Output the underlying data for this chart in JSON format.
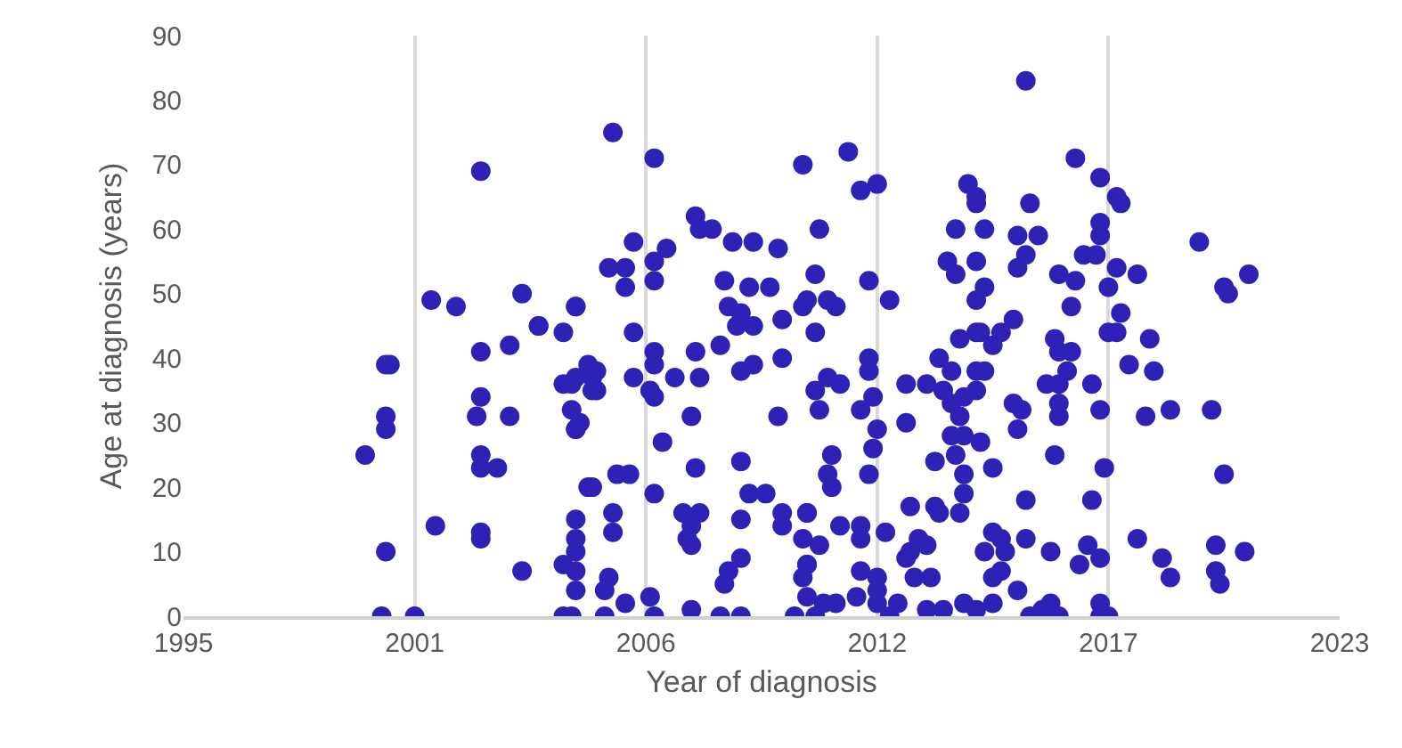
{
  "chart_data": {
    "type": "scatter",
    "xlabel": "Year of diagnosis",
    "ylabel": "Age at diagnosis (years)",
    "xlim": [
      1995,
      2023
    ],
    "xticks": [
      1995,
      {
        "value": 2000.6,
        "label": "2001"
      },
      {
        "value": 2006.2,
        "label": "2006"
      },
      {
        "value": 2011.8,
        "label": "2012"
      },
      {
        "value": 2017.4,
        "label": "2017"
      },
      2023
    ],
    "ylim": [
      0,
      90
    ],
    "yticks": [
      0,
      10,
      20,
      30,
      40,
      50,
      60,
      70,
      80,
      90
    ],
    "grid": "x",
    "marker": "circle",
    "series": [
      {
        "color": "#2e21b5",
        "x": [
          1999.4,
          1999.8,
          1999.9,
          2000.0,
          1999.9,
          1999.9,
          1999.9,
          2000.6,
          2001.0,
          2001.1,
          2001.6,
          2002.2,
          2002.2,
          2002.2,
          2002.1,
          2002.2,
          2002.2,
          2002.6,
          2002.2,
          2002.2,
          2002.9,
          2002.9,
          2003.2,
          2003.2,
          2003.6,
          2003.6,
          2004.2,
          2004.2,
          2004.5,
          2004.5,
          2004.2,
          2004.2,
          2004.5,
          2004.4,
          2004.6,
          2004.5,
          2004.5,
          2004.8,
          2005.0,
          2004.9,
          2005.4,
          2005.4,
          2006.4,
          2010.0,
          2007.4,
          2007.5,
          2007.8,
          2005.9,
          2006.7,
          2006.4,
          2005.3,
          2005.7,
          2005.7,
          2006.4,
          2008.3,
          2008.8,
          2009.4,
          2008.1,
          2008.7,
          2009.2,
          2004.5,
          2008.2,
          2008.5,
          2008.4,
          2008.8,
          2009.5,
          2010.0,
          2005.9,
          2006.4,
          2006.4,
          2007.4,
          2008.0,
          2004.8,
          2005.0,
          2004.9,
          2004.4,
          2004.5,
          2005.9,
          2006.3,
          2006.4,
          2006.9,
          2007.5,
          2008.5,
          2008.8,
          2009.5,
          2007.3,
          2009.4,
          2006.6,
          2007.4,
          2008.5,
          2004.9,
          2005.5,
          2005.8,
          2006.4,
          2008.7,
          2009.1,
          2005.4,
          2007.1,
          2007.5,
          2007.3,
          2007.2,
          2007.3,
          2008.5,
          2009.5,
          2009.5,
          2010.1,
          2004.5,
          2004.5,
          2004.5,
          2005.3,
          2005.2,
          2008.5,
          2008.2,
          2008.1,
          2010.1,
          2005.7,
          2006.3,
          2007.3,
          2005.2,
          2006.4,
          2008.0,
          2008.5,
          2009.8,
          2004.4,
          2015.4,
          2011.1,
          2011.4,
          2011.8,
          2014.0,
          2014.2,
          2014.2,
          2015.5,
          2010.4,
          2013.7,
          2014.4,
          2015.2,
          2015.7,
          2015.4,
          2013.5,
          2013.7,
          2014.2,
          2015.2,
          2010.3,
          2010.1,
          2011.6,
          2010.6,
          2010.8,
          2012.1,
          2014.4,
          2014.2,
          2010.3,
          2015.1,
          2014.8,
          2013.8,
          2014.2,
          2014.3,
          2014.6,
          2011.6,
          2011.6,
          2013.3,
          2013.6,
          2014.2,
          2014.4,
          2010.6,
          2010.9,
          2010.3,
          2012.5,
          2013.0,
          2013.4,
          2013.9,
          2014.2,
          2011.7,
          2011.4,
          2010.4,
          2013.6,
          2013.8,
          2013.9,
          2015.1,
          2015.3,
          2015.2,
          2011.8,
          2011.7,
          2012.5,
          2013.6,
          2014.3,
          2013.7,
          2010.7,
          2010.6,
          2010.7,
          2011.6,
          2013.2,
          2014.6,
          2013.9,
          2013.9,
          2013.8,
          2015.4,
          2010.1,
          2012.6,
          2013.2,
          2013.3,
          2010.9,
          2011.4,
          2011.4,
          2012.0,
          2010.4,
          2010.0,
          2012.8,
          2013.0,
          2012.6,
          2012.5,
          2014.6,
          2014.8,
          2014.4,
          2014.9,
          2015.4,
          2014.8,
          2014.6,
          2015.2,
          2010.1,
          2010.0,
          2011.4,
          2011.8,
          2011.8,
          2013.1,
          2012.7,
          2010.8,
          2010.5,
          2010.1,
          2011.3,
          2011.8,
          2012.3,
          2012.1,
          2013.0,
          2013.4,
          2013.9,
          2014.2,
          2014.6,
          2015.5,
          2015.8,
          2010.3,
          2016.6,
          2017.2,
          2017.6,
          2017.7,
          2017.2,
          2017.2,
          2017.1,
          2016.8,
          2019.6,
          2016.2,
          2016.6,
          2017.6,
          2018.1,
          2017.4,
          2020.2,
          2020.3,
          2020.8,
          2016.5,
          2017.7,
          2017.4,
          2017.6,
          2018.4,
          2016.1,
          2016.2,
          2016.5,
          2016.4,
          2015.9,
          2016.2,
          2017.9,
          2018.5,
          2017.0,
          2016.2,
          2016.2,
          2017.2,
          2018.3,
          2018.9,
          2019.9,
          2016.1,
          2017.3,
          2020.2,
          2017.0,
          2018.1,
          2016.0,
          2016.9,
          2016.7,
          2017.2,
          2018.7,
          2018.9,
          2020.0,
          2020.0,
          2020.1,
          2020.7,
          2016.0,
          2016.2,
          2017.2,
          2017.2,
          2017.4
        ],
        "values": [
          25,
          0,
          39,
          39,
          31,
          29,
          10,
          0,
          49,
          14,
          48,
          69,
          41,
          34,
          31,
          25,
          23,
          23,
          13,
          12,
          31,
          42,
          50,
          7,
          45,
          45,
          44,
          36,
          10,
          4,
          0,
          8,
          48,
          32,
          30,
          29,
          37,
          20,
          35,
          37,
          13,
          75,
          71,
          70,
          62,
          60,
          60,
          58,
          57,
          55,
          54,
          54,
          51,
          52,
          58,
          58,
          57,
          52,
          51,
          51,
          48,
          48,
          47,
          45,
          45,
          46,
          48,
          44,
          41,
          39,
          41,
          42,
          39,
          38,
          35,
          36,
          29,
          37,
          35,
          34,
          37,
          37,
          38,
          39,
          40,
          31,
          31,
          27,
          23,
          24,
          20,
          22,
          22,
          19,
          19,
          19,
          16,
          16,
          16,
          14,
          12,
          11,
          15,
          16,
          14,
          16,
          15,
          12,
          7,
          6,
          4,
          9,
          7,
          5,
          8,
          2,
          3,
          1,
          0,
          0,
          0,
          0,
          0,
          0,
          83,
          72,
          66,
          67,
          67,
          65,
          64,
          64,
          60,
          60,
          60,
          59,
          59,
          56,
          55,
          53,
          55,
          54,
          53,
          49,
          52,
          49,
          48,
          49,
          51,
          49,
          44,
          46,
          44,
          43,
          44,
          44,
          42,
          40,
          38,
          40,
          38,
          38,
          38,
          37,
          36,
          35,
          36,
          36,
          35,
          34,
          35,
          34,
          32,
          32,
          33,
          31,
          28,
          33,
          32,
          29,
          29,
          26,
          30,
          28,
          27,
          25,
          25,
          22,
          20,
          22,
          24,
          23,
          22,
          19,
          16,
          18,
          16,
          17,
          17,
          16,
          14,
          14,
          12,
          13,
          11,
          12,
          12,
          11,
          10,
          9,
          13,
          12,
          10,
          10,
          12,
          7,
          6,
          4,
          8,
          6,
          7,
          6,
          4,
          6,
          6,
          2,
          2,
          3,
          3,
          2,
          2,
          0,
          1,
          1,
          2,
          1,
          2,
          0,
          1,
          0,
          71,
          68,
          65,
          64,
          61,
          59,
          56,
          56,
          58,
          53,
          52,
          54,
          53,
          51,
          51,
          50,
          53,
          48,
          47,
          44,
          44,
          43,
          43,
          41,
          41,
          38,
          36,
          36,
          39,
          38,
          36,
          33,
          31,
          32,
          31,
          32,
          32,
          25,
          23,
          22,
          18,
          12,
          10,
          11,
          8,
          9,
          9,
          6,
          11,
          7,
          5,
          10,
          2,
          0,
          2,
          0,
          0
        ]
      }
    ]
  }
}
